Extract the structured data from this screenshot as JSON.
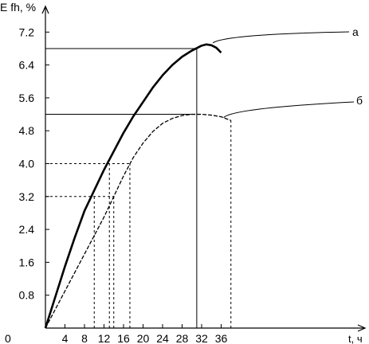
{
  "chart_data": {
    "type": "line",
    "title": "",
    "ylabel": "E fh, %",
    "xlabel": "t, ч",
    "xlim": [
      0,
      40
    ],
    "ylim": [
      0,
      7.6
    ],
    "x_ticks": [
      0,
      4,
      8,
      12,
      16,
      20,
      24,
      28,
      32,
      36
    ],
    "x_tick_labels": [
      "0",
      "4",
      "8",
      "12",
      "16",
      "20",
      "24",
      "28",
      "32",
      "36"
    ],
    "y_ticks": [
      0.8,
      1.6,
      2.4,
      3.2,
      4.0,
      4.8,
      5.6,
      6.4,
      7.2
    ],
    "y_tick_labels": [
      "0.8",
      "1.6",
      "2.4",
      "3.2",
      "4.0",
      "4.8",
      "5.6",
      "6.4",
      "7.2"
    ],
    "grid": false,
    "series": [
      {
        "name": "а",
        "style": "solid",
        "x": [
          0,
          2,
          4,
          6,
          8,
          10,
          12,
          14,
          16,
          18,
          20,
          22,
          24,
          26,
          28,
          30,
          32,
          33,
          34,
          35,
          36
        ],
        "y": [
          0,
          0.75,
          1.5,
          2.2,
          2.85,
          3.35,
          3.85,
          4.3,
          4.75,
          5.15,
          5.5,
          5.85,
          6.15,
          6.4,
          6.6,
          6.75,
          6.87,
          6.9,
          6.88,
          6.82,
          6.7
        ]
      },
      {
        "name": "б",
        "style": "dashed",
        "x": [
          0,
          2,
          4,
          6,
          8,
          10,
          12,
          14,
          16,
          18,
          20,
          22,
          24,
          26,
          28,
          30,
          32,
          34,
          36,
          38
        ],
        "y": [
          0,
          0.45,
          0.9,
          1.35,
          1.8,
          2.25,
          2.7,
          3.2,
          3.7,
          4.15,
          4.5,
          4.78,
          4.98,
          5.1,
          5.17,
          5.2,
          5.2,
          5.18,
          5.14,
          5.05
        ]
      }
    ],
    "reference_lines": {
      "horizontal": [
        {
          "y": 6.8,
          "x_to": 31,
          "style": "solid"
        },
        {
          "y": 5.2,
          "x_to": 30,
          "style": "solid"
        },
        {
          "y": 4.0,
          "x_to": 17.3,
          "style": "dashed"
        },
        {
          "y": 3.2,
          "x_to": 14,
          "style": "dashed"
        }
      ],
      "vertical": [
        {
          "x": 31,
          "y_to": 6.8,
          "style": "solid"
        },
        {
          "x": 38,
          "y_to": 5.05,
          "style": "dashed"
        },
        {
          "x": 10,
          "y_to": 3.2,
          "style": "dashed"
        },
        {
          "x": 13.1,
          "y_to": 4.0,
          "style": "dashed"
        },
        {
          "x": 14,
          "y_to": 3.2,
          "style": "dashed"
        },
        {
          "x": 17.3,
          "y_to": 4.0,
          "style": "dashed"
        }
      ]
    }
  }
}
